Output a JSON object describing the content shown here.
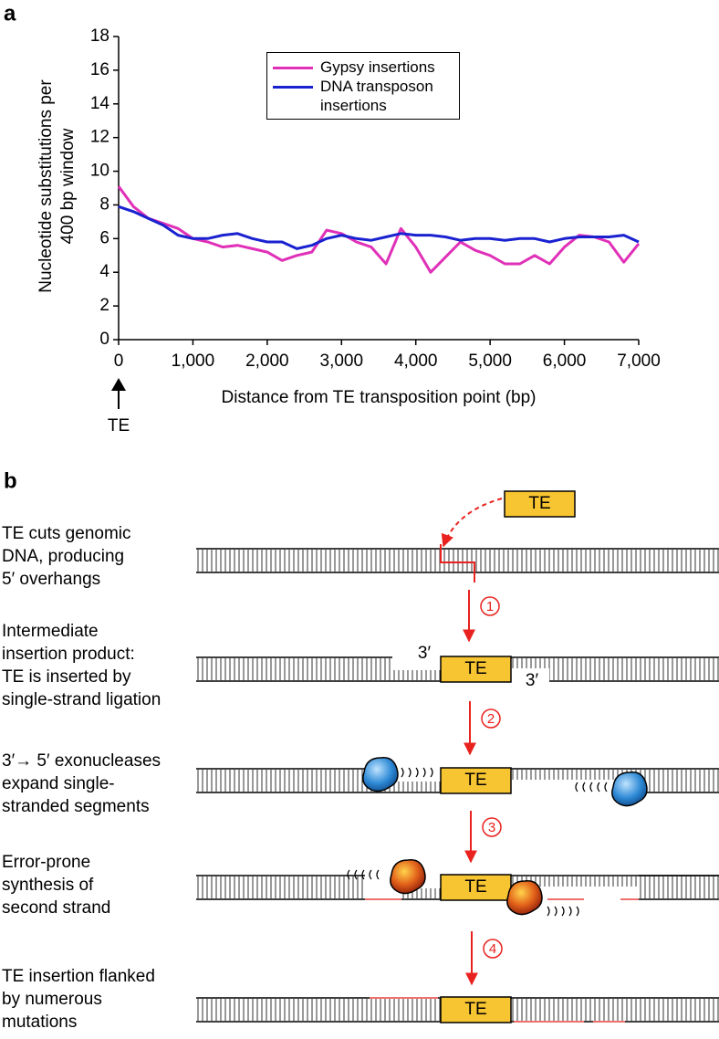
{
  "panel_a_label": "a",
  "chart_data": {
    "type": "line",
    "y_label": "Nucleotide substitutions per 400 bp window",
    "x_label": "Distance from TE transposition point (bp)",
    "annotation": "TE",
    "x": [
      0,
      200,
      400,
      600,
      800,
      1000,
      1200,
      1400,
      1600,
      1800,
      2000,
      2200,
      2400,
      2600,
      2800,
      3000,
      3200,
      3400,
      3600,
      3800,
      4000,
      4200,
      4400,
      4600,
      4800,
      5000,
      5200,
      5400,
      5600,
      5800,
      6000,
      6200,
      6400,
      6600,
      6800,
      7000
    ],
    "series": [
      {
        "name": "Gypsy insertions",
        "color": "#e030b8",
        "values": [
          9.1,
          7.9,
          7.2,
          6.9,
          6.6,
          6.0,
          5.8,
          5.5,
          5.6,
          5.4,
          5.2,
          4.7,
          5.0,
          5.2,
          6.5,
          6.3,
          5.8,
          5.5,
          4.5,
          6.6,
          5.5,
          4.0,
          4.9,
          5.8,
          5.3,
          5.0,
          4.5,
          4.5,
          5.0,
          4.5,
          5.5,
          6.2,
          6.1,
          5.8,
          4.6,
          5.7
        ]
      },
      {
        "name": "DNA transposon insertions",
        "color": "#1a22d0",
        "values": [
          7.9,
          7.6,
          7.2,
          6.8,
          6.2,
          6.0,
          6.0,
          6.2,
          6.3,
          6.0,
          5.8,
          5.8,
          5.4,
          5.6,
          6.0,
          6.2,
          6.0,
          5.9,
          6.1,
          6.3,
          6.2,
          6.2,
          6.1,
          5.9,
          6.0,
          6.0,
          5.9,
          6.0,
          6.0,
          5.8,
          6.0,
          6.1,
          6.1,
          6.1,
          6.2,
          5.8
        ]
      }
    ],
    "xlim": [
      0,
      7000
    ],
    "ylim": [
      0,
      18
    ],
    "xticks": [
      0,
      {
        "value": 1000,
        "label": "1,000"
      },
      {
        "value": 2000,
        "label": "2,000"
      },
      {
        "value": 3000,
        "label": "3,000"
      },
      {
        "value": 4000,
        "label": "4,000"
      },
      {
        "value": 5000,
        "label": "5,000"
      },
      {
        "value": 6000,
        "label": "6,000"
      },
      {
        "value": 7000,
        "label": "7,000"
      }
    ],
    "yticks": [
      0,
      2,
      4,
      6,
      8,
      10,
      12,
      14,
      16,
      18
    ],
    "legend": "upper center"
  },
  "panel_b": {
    "label": "b",
    "te_label": "TE",
    "three_prime": "3′",
    "steps": [
      {
        "lines": [
          "TE cuts genomic",
          "DNA, producing",
          "5′ overhangs"
        ]
      },
      {
        "lines": [
          "Intermediate",
          "insertion product:",
          "TE is inserted by",
          "single-strand ligation"
        ]
      },
      {
        "lines": [
          "3′→ 5′ exonucleases",
          "expand single-",
          "stranded segments"
        ]
      },
      {
        "lines": [
          "Error-prone",
          "synthesis of",
          "second strand"
        ]
      },
      {
        "lines": [
          "TE insertion flanked",
          "by numerous",
          "mutations"
        ]
      }
    ],
    "arrows": [
      "1",
      "2",
      "3",
      "4"
    ]
  }
}
